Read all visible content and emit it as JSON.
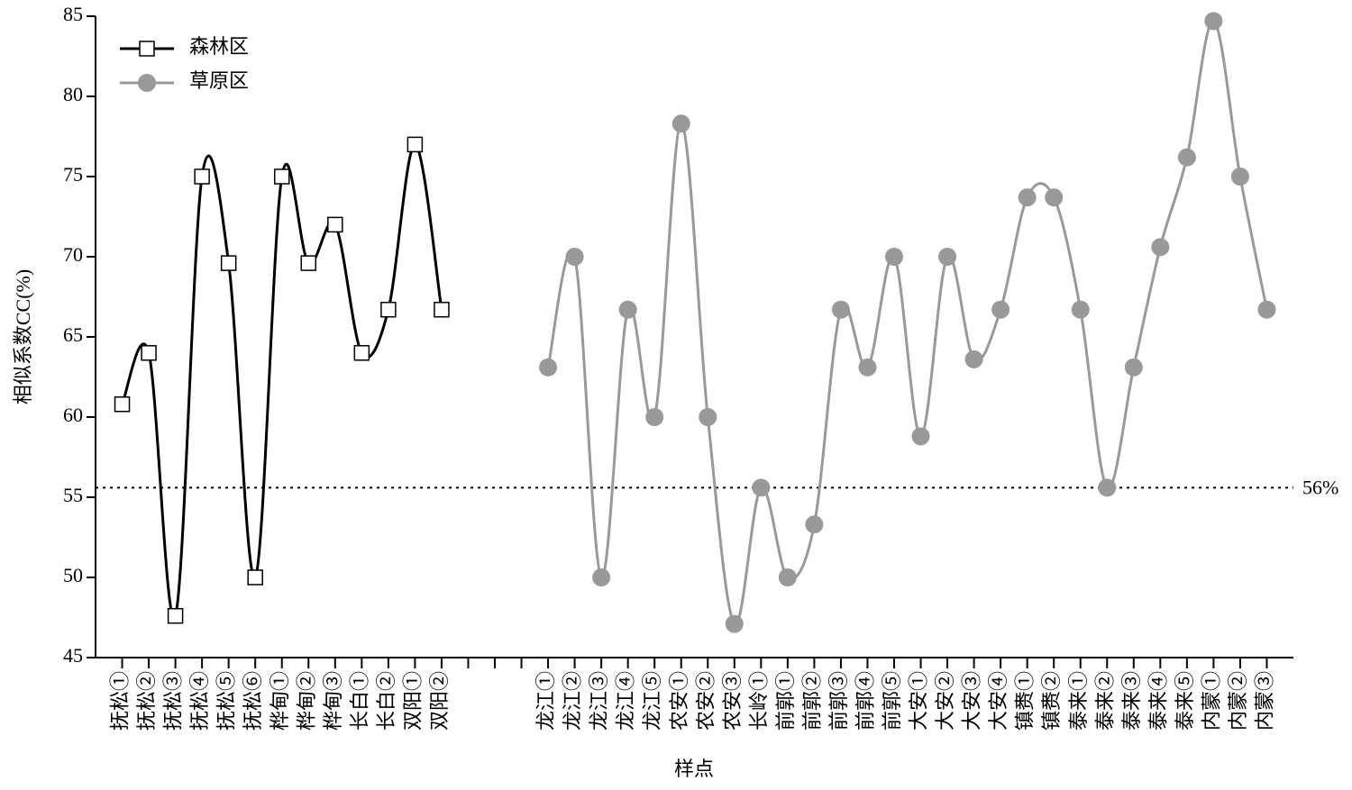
{
  "chart_data": {
    "type": "line",
    "y_label": "相似系数CC(%)",
    "x_label": "样点",
    "categories": [
      "抚松①",
      "抚松②",
      "抚松③",
      "抚松④",
      "抚松⑤",
      "抚松⑥",
      "桦甸①",
      "桦甸②",
      "桦甸③",
      "长白①",
      "长白②",
      "双阳①",
      "双阳②",
      null,
      null,
      null,
      "龙江①",
      "龙江②",
      "龙江③",
      "龙江④",
      "龙江⑤",
      "农安①",
      "农安②",
      "农安③",
      "长岭①",
      "前郭①",
      "前郭②",
      "前郭③",
      "前郭④",
      "前郭⑤",
      "大安①",
      "大安②",
      "大安③",
      "大安④",
      "镇赉①",
      "镇赉②",
      "泰来①",
      "泰来②",
      "泰来③",
      "泰来④",
      "泰来⑤",
      "内蒙①",
      "内蒙②",
      "内蒙③"
    ],
    "series": [
      {
        "name": "森林区",
        "color": "#000000",
        "marker": "square",
        "values": [
          60.8,
          64,
          47.6,
          75,
          69.6,
          50,
          75,
          69.6,
          72,
          64,
          66.7,
          77,
          66.7,
          null,
          null,
          null,
          null,
          null,
          null,
          null,
          null,
          null,
          null,
          null,
          null,
          null,
          null,
          null,
          null,
          null,
          null,
          null,
          null,
          null,
          null,
          null,
          null,
          null,
          null,
          null,
          null,
          null,
          null,
          null
        ]
      },
      {
        "name": "草原区",
        "color": "#999999",
        "marker": "circle",
        "values": [
          null,
          null,
          null,
          null,
          null,
          null,
          null,
          null,
          null,
          null,
          null,
          null,
          null,
          null,
          null,
          null,
          63.1,
          70,
          50,
          66.7,
          60,
          78.3,
          60,
          47.1,
          55.6,
          50,
          53.3,
          66.7,
          63.1,
          70,
          58.8,
          70,
          63.6,
          66.7,
          73.7,
          73.7,
          66.7,
          55.6,
          63.1,
          70.6,
          76.2,
          84.7,
          75,
          66.7
        ]
      }
    ],
    "reference_line": {
      "value": 55.6,
      "label": "56%"
    },
    "ylim": [
      45,
      85
    ],
    "yticks": [
      45,
      50,
      55,
      60,
      65,
      70,
      75,
      80,
      85
    ],
    "legend": "top-left"
  }
}
